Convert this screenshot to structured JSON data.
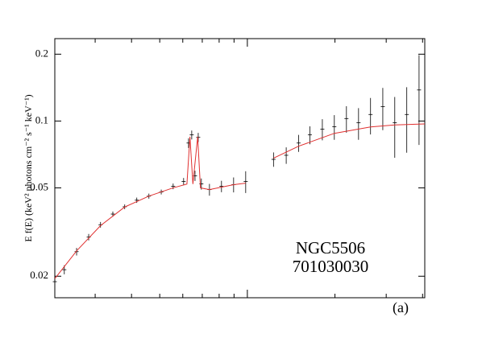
{
  "chart_data": {
    "type": "scatter",
    "y_label": "E f(E) (keV² photons cm⁻² s⁻¹ keV⁻¹)",
    "annotations": [
      "NGC5506",
      "701030030",
      "(a)"
    ],
    "x_log": true,
    "y_log": true,
    "xlim": [
      2.18,
      40.7
    ],
    "ylim": [
      0.016,
      0.235
    ],
    "xticks": [
      3,
      4,
      5,
      6,
      7,
      8,
      9,
      10,
      20,
      30,
      40
    ],
    "yticks": [
      0.02,
      0.05,
      0.1,
      0.2
    ],
    "series": [
      {
        "color": "#000000",
        "x": [
          2.18,
          2.35,
          2.59,
          2.85,
          3.13,
          3.45,
          3.79,
          4.17,
          4.59,
          5.06,
          5.56,
          6.04,
          6.28,
          6.44,
          6.61,
          6.78,
          6.95,
          7.41,
          8.15,
          8.97,
          9.87,
          12.3,
          13.6,
          15.0,
          16.4,
          18.1,
          19.9,
          21.9,
          24.1,
          26.5,
          29.2,
          32.1,
          35.3,
          38.9
        ],
        "values": [
          0.0189,
          0.0214,
          0.0258,
          0.03,
          0.0341,
          0.0381,
          0.0411,
          0.044,
          0.0459,
          0.0479,
          0.0508,
          0.0534,
          0.0796,
          0.0866,
          0.0567,
          0.0844,
          0.0521,
          0.0491,
          0.0508,
          0.0517,
          0.0534,
          0.0672,
          0.0701,
          0.0796,
          0.0866,
          0.0919,
          0.0943,
          0.1026,
          0.0983,
          0.107,
          0.116,
          0.0983,
          0.107,
          0.138
        ],
        "errors": [
          0.0012,
          0.001,
          0.001,
          0.001,
          0.001,
          0.001,
          0.001,
          0.0012,
          0.0012,
          0.0012,
          0.0015,
          0.002,
          0.004,
          0.004,
          0.003,
          0.004,
          0.003,
          0.003,
          0.003,
          0.004,
          0.006,
          0.005,
          0.006,
          0.007,
          0.008,
          0.01,
          0.012,
          0.014,
          0.016,
          0.02,
          0.025,
          0.03,
          0.035,
          0.06
        ]
      },
      {
        "color": "#e03030",
        "x": [
          2.18,
          2.59,
          3.13,
          3.79,
          4.59,
          5.56,
          6.2,
          6.35,
          6.5,
          6.75,
          6.9,
          7.41,
          8.97,
          9.87,
          11,
          12.3,
          15,
          19.9,
          26.5,
          32.1,
          40.7
        ],
        "values": [
          0.0195,
          0.026,
          0.0338,
          0.041,
          0.0459,
          0.05,
          0.052,
          0.085,
          0.052,
          0.085,
          0.05,
          0.0491,
          0.0517,
          0.0525,
          null,
          0.068,
          0.077,
          0.088,
          0.094,
          0.096,
          0.097
        ]
      }
    ]
  }
}
